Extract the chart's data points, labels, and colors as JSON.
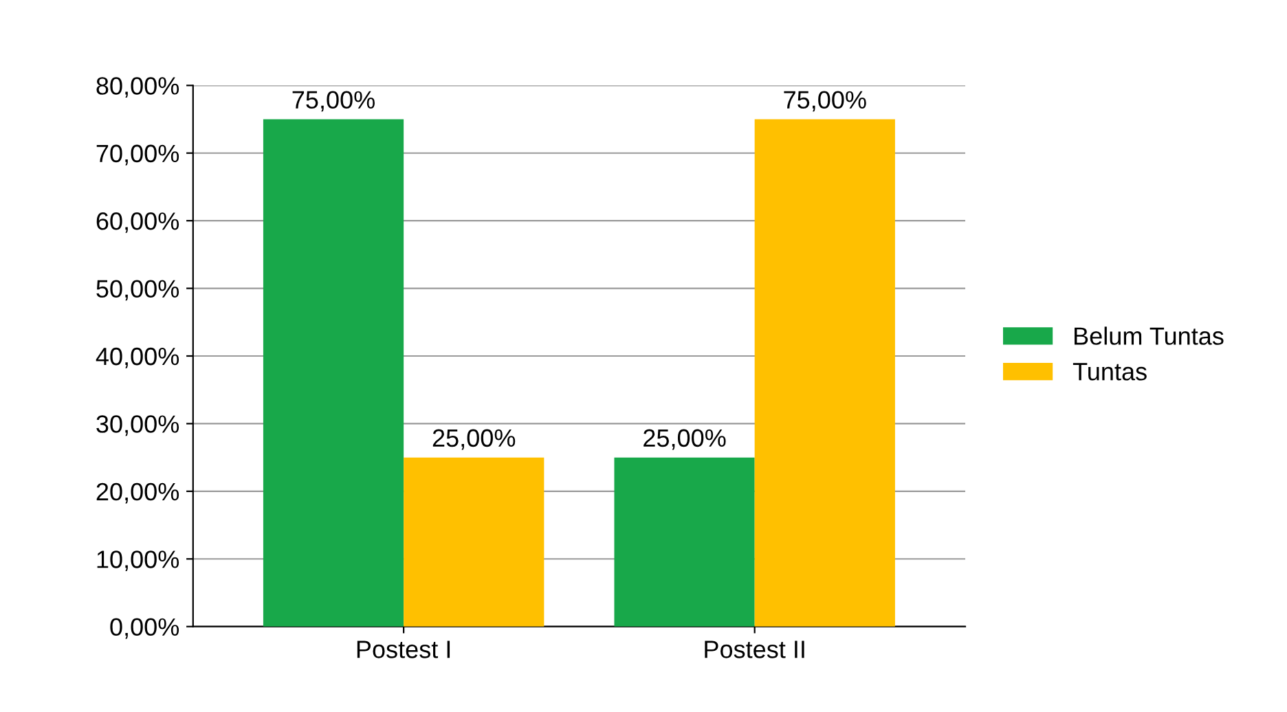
{
  "chart_data": {
    "type": "bar",
    "categories": [
      "Postest I",
      "Postest II"
    ],
    "series": [
      {
        "name": "Belum Tuntas",
        "color": "#18a84a",
        "values": [
          75,
          25
        ],
        "value_labels": [
          "75,00%",
          "25,00%"
        ]
      },
      {
        "name": "Tuntas",
        "color": "#ffc000",
        "values": [
          25,
          75
        ],
        "value_labels": [
          "25,00%",
          "75,00%"
        ]
      }
    ],
    "ylim": [
      0,
      80
    ],
    "yticks": [
      {
        "value": 0,
        "label": "0,00%"
      },
      {
        "value": 10,
        "label": "10,00%"
      },
      {
        "value": 20,
        "label": "20,00%"
      },
      {
        "value": 30,
        "label": "30,00%"
      },
      {
        "value": 40,
        "label": "40,00%"
      },
      {
        "value": 50,
        "label": "50,00%"
      },
      {
        "value": 60,
        "label": "60,00%"
      },
      {
        "value": 70,
        "label": "70,00%"
      },
      {
        "value": 80,
        "label": "80,00%"
      }
    ],
    "grid": "y",
    "legend": "right"
  }
}
